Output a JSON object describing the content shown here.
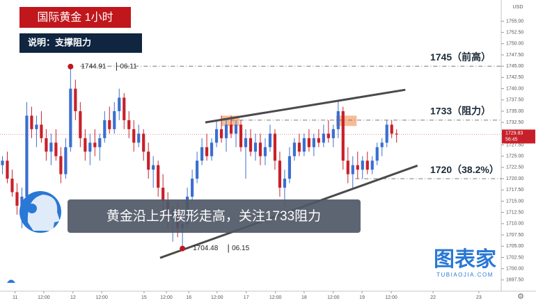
{
  "chart_data": {
    "type": "candlestick",
    "title": "国际黄金  1小时",
    "subtitle": "说明：支撑阻力",
    "caption": "黄金沿上升楔形走高，关注1733阻力",
    "currency": "USD",
    "watermark": {
      "main": "图表家",
      "site": "TUBIAOJIA.COM"
    },
    "up_color": "#3a6fd0",
    "down_color": "#c8202a",
    "last_price": {
      "value": 1729.83,
      "label": "1729.83",
      "countdown": "56:45"
    },
    "xlim": [
      0,
      103
    ],
    "ylim": [
      1695,
      1758
    ],
    "grid": false,
    "yticks": [
      {
        "value": 1697.5,
        "label": "1697.50"
      },
      {
        "value": 1700,
        "label": "1700.00"
      },
      {
        "value": 1702.5,
        "label": "1702.50"
      },
      {
        "value": 1705,
        "label": "1705.00"
      },
      {
        "value": 1707.5,
        "label": "1707.50"
      },
      {
        "value": 1710,
        "label": "1710.00"
      },
      {
        "value": 1712.5,
        "label": "1712.50"
      },
      {
        "value": 1715,
        "label": "1715.00"
      },
      {
        "value": 1717.5,
        "label": "1717.50"
      },
      {
        "value": 1720,
        "label": "1720.00"
      },
      {
        "value": 1722.5,
        "label": "1722.50"
      },
      {
        "value": 1725,
        "label": "1725.00"
      },
      {
        "value": 1727.5,
        "label": "1727.50"
      },
      {
        "value": 1730,
        "label": "1730.00"
      },
      {
        "value": 1732.5,
        "label": "1732.50"
      },
      {
        "value": 1735,
        "label": "1735.00"
      },
      {
        "value": 1737.5,
        "label": "1737.50"
      },
      {
        "value": 1740,
        "label": "1740.00"
      },
      {
        "value": 1742.5,
        "label": "1742.50"
      },
      {
        "value": 1745,
        "label": "1745.00"
      },
      {
        "value": 1747.5,
        "label": "1747.50"
      },
      {
        "value": 1750,
        "label": "1750.00"
      },
      {
        "value": 1752.5,
        "label": "1752.50"
      },
      {
        "value": 1755,
        "label": "1755.00"
      }
    ],
    "xticks": [
      {
        "value": 3.1,
        "label": "11"
      },
      {
        "value": 9.0,
        "label": "12:00"
      },
      {
        "value": 15.0,
        "label": "12"
      },
      {
        "value": 20.9,
        "label": "12:00"
      },
      {
        "value": 29.6,
        "label": "15"
      },
      {
        "value": 34.2,
        "label": "12:00"
      },
      {
        "value": 38.8,
        "label": "16"
      },
      {
        "value": 44.6,
        "label": "12:00"
      },
      {
        "value": 50.6,
        "label": "17"
      },
      {
        "value": 56.6,
        "label": "12:00"
      },
      {
        "value": 62.5,
        "label": "18"
      },
      {
        "value": 68.5,
        "label": "12:00"
      },
      {
        "value": 74.4,
        "label": "19"
      },
      {
        "value": 80.4,
        "label": "12:00"
      },
      {
        "value": 89.0,
        "label": "22"
      },
      {
        "value": 98.4,
        "label": "23"
      }
    ],
    "x": [
      0.5,
      1.5,
      2.5,
      3.5,
      4.5,
      5.5,
      6.5,
      7.5,
      8.5,
      9.5,
      10.5,
      11.5,
      12.5,
      13.5,
      14.5,
      15.5,
      16.5,
      17.5,
      18.5,
      19.5,
      20.5,
      21.5,
      22.5,
      23.5,
      24.5,
      25.5,
      26.5,
      27.5,
      28.5,
      29.5,
      30.5,
      31.5,
      32.5,
      33.5,
      34.5,
      35.5,
      36.5,
      37.5,
      38.5,
      39.5,
      40.5,
      41.5,
      42.5,
      43.5,
      44.5,
      45.5,
      46.5,
      47.5,
      48.5,
      49.5,
      50.5,
      51.5,
      52.5,
      53.5,
      54.5,
      55.5,
      56.5,
      57.5,
      58.5,
      59.5,
      60.5,
      61.5,
      62.5,
      63.5,
      64.5,
      65.5,
      66.5,
      67.5,
      68.5,
      69.5,
      70.5,
      71.5,
      72.5,
      73.5,
      74.5,
      75.5,
      76.5,
      77.5,
      78.5,
      79.5,
      80.5,
      81.5
    ],
    "candles": [
      [
        1723,
        1725,
        1721,
        1724
      ],
      [
        1724,
        1726,
        1719,
        1720
      ],
      [
        1720,
        1722,
        1716,
        1717
      ],
      [
        1717,
        1719,
        1712,
        1714
      ],
      [
        1714,
        1718,
        1709,
        1716
      ],
      [
        1716,
        1737,
        1715,
        1734
      ],
      [
        1734,
        1736,
        1729,
        1731
      ],
      [
        1731,
        1734,
        1727,
        1732
      ],
      [
        1732,
        1735,
        1728,
        1729
      ],
      [
        1729,
        1731,
        1724,
        1726
      ],
      [
        1726,
        1730,
        1723,
        1728
      ],
      [
        1728,
        1731,
        1724,
        1725
      ],
      [
        1725,
        1727,
        1719,
        1721
      ],
      [
        1721,
        1729,
        1720,
        1727
      ],
      [
        1727,
        1744.91,
        1726,
        1740
      ],
      [
        1740,
        1742,
        1733,
        1735
      ],
      [
        1735,
        1737,
        1727,
        1729
      ],
      [
        1729,
        1731,
        1724,
        1726
      ],
      [
        1726,
        1730,
        1723,
        1728
      ],
      [
        1728,
        1731,
        1725,
        1727
      ],
      [
        1727,
        1730,
        1724,
        1729
      ],
      [
        1729,
        1735,
        1728,
        1733
      ],
      [
        1733,
        1736,
        1730,
        1731
      ],
      [
        1731,
        1737,
        1730,
        1735
      ],
      [
        1735,
        1740,
        1733,
        1738
      ],
      [
        1738,
        1739,
        1731,
        1733
      ],
      [
        1733,
        1735,
        1729,
        1731
      ],
      [
        1731,
        1733,
        1726,
        1728
      ],
      [
        1728,
        1732,
        1727,
        1730
      ],
      [
        1730,
        1731,
        1724,
        1726
      ],
      [
        1726,
        1728,
        1720,
        1722
      ],
      [
        1722,
        1725,
        1718,
        1723
      ],
      [
        1723,
        1724,
        1716,
        1718
      ],
      [
        1718,
        1721,
        1713,
        1715
      ],
      [
        1715,
        1717,
        1709,
        1711
      ],
      [
        1711,
        1714,
        1706,
        1713
      ],
      [
        1713,
        1715,
        1707,
        1709
      ],
      [
        1709,
        1712,
        1704.48,
        1710
      ],
      [
        1710,
        1718,
        1709,
        1716
      ],
      [
        1716,
        1722,
        1715,
        1720
      ],
      [
        1720,
        1726,
        1719,
        1724
      ],
      [
        1724,
        1729,
        1723,
        1727
      ],
      [
        1727,
        1730,
        1724,
        1725
      ],
      [
        1725,
        1729,
        1724,
        1728
      ],
      [
        1728,
        1733,
        1727,
        1731
      ],
      [
        1731,
        1734,
        1728,
        1729
      ],
      [
        1729,
        1733,
        1726,
        1732
      ],
      [
        1732,
        1734,
        1729,
        1730
      ],
      [
        1730,
        1733,
        1727,
        1732
      ],
      [
        1732,
        1733,
        1726,
        1727
      ],
      [
        1727,
        1731,
        1720,
        1729
      ],
      [
        1729,
        1731,
        1725,
        1726
      ],
      [
        1726,
        1730,
        1724,
        1728
      ],
      [
        1728,
        1730,
        1723,
        1725
      ],
      [
        1725,
        1729,
        1723,
        1727
      ],
      [
        1727,
        1732,
        1726,
        1730
      ],
      [
        1730,
        1731,
        1722,
        1724
      ],
      [
        1724,
        1726,
        1716,
        1718
      ],
      [
        1718,
        1722,
        1714,
        1720
      ],
      [
        1720,
        1727,
        1719,
        1725
      ],
      [
        1725,
        1729,
        1724,
        1728
      ],
      [
        1728,
        1730,
        1725,
        1726
      ],
      [
        1726,
        1730,
        1725,
        1729
      ],
      [
        1729,
        1731,
        1726,
        1727
      ],
      [
        1727,
        1730,
        1725,
        1729
      ],
      [
        1729,
        1731,
        1727,
        1728
      ],
      [
        1728,
        1732,
        1727,
        1730
      ],
      [
        1730,
        1733,
        1728,
        1729
      ],
      [
        1729,
        1732,
        1727,
        1731
      ],
      [
        1731,
        1737.5,
        1729,
        1735
      ],
      [
        1735,
        1736,
        1722,
        1724
      ],
      [
        1724,
        1727,
        1719,
        1721
      ],
      [
        1721,
        1725,
        1718,
        1723
      ],
      [
        1723,
        1726,
        1720,
        1722
      ],
      [
        1722,
        1725,
        1720,
        1724
      ],
      [
        1724,
        1726,
        1721,
        1722
      ],
      [
        1722,
        1725,
        1721,
        1724
      ],
      [
        1724,
        1728,
        1723,
        1727
      ],
      [
        1727,
        1729,
        1725,
        1728
      ],
      [
        1728,
        1733,
        1727,
        1732
      ],
      [
        1732,
        1733,
        1729,
        1730
      ],
      [
        1730,
        1731,
        1728,
        1729.83
      ]
    ],
    "levels": [
      {
        "value": 1745,
        "label": "1745（前高）",
        "x_start": 16.5
      },
      {
        "value": 1733,
        "label": "1733（阻力）",
        "x_start": 45.5
      },
      {
        "value": 1720,
        "label": "1720（38.2%）",
        "x_start": 73
      }
    ],
    "trendlines": [
      {
        "x": [
          42.2,
          83.3
        ],
        "y": [
          1732.5,
          1739.75
        ]
      },
      {
        "x": [
          32.9,
          85.8
        ],
        "y": [
          1702.4,
          1722.9
        ]
      }
    ],
    "zones": [
      {
        "x": [
          45.5,
          49.2
        ],
        "y": [
          1731.7,
          1734.0
        ]
      },
      {
        "x": [
          69.1,
          73.3
        ],
        "y": [
          1731.7,
          1734.0
        ]
      }
    ],
    "markers": [
      {
        "x": 14.5,
        "value": 1744.91,
        "label": "1744.91",
        "date": "06.11"
      },
      {
        "x": 37.5,
        "value": 1704.48,
        "label": "1704.48",
        "date": "06.15"
      }
    ]
  }
}
